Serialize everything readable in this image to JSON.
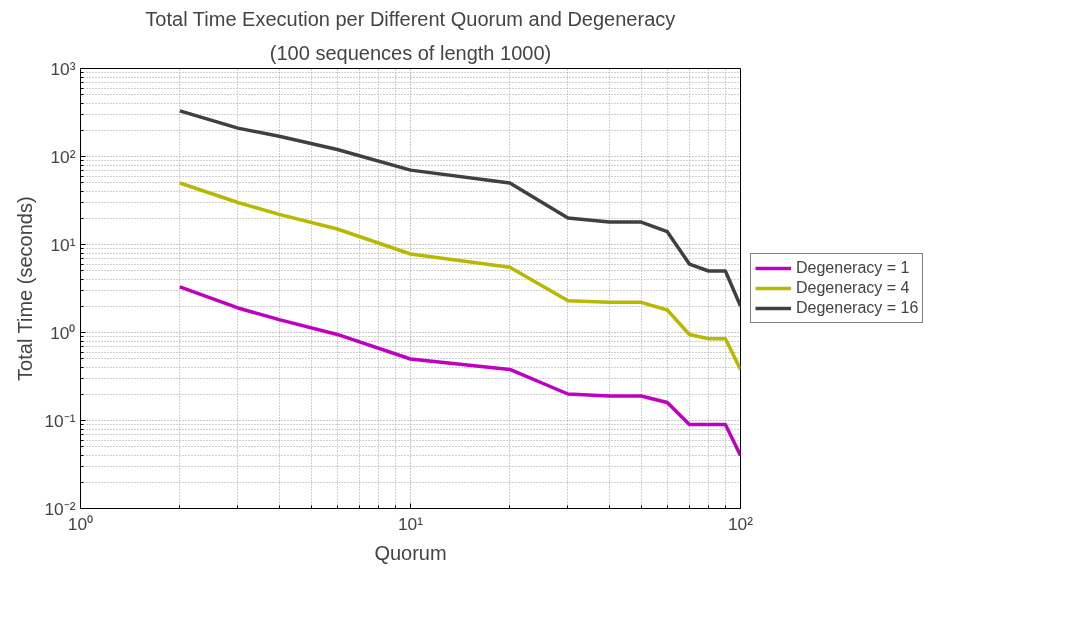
{
  "chart_data": {
    "type": "line",
    "title": "Total Time Execution per Different Quorum and Degeneracy",
    "subtitle": "(100 sequences of length 1000)",
    "xlabel": "Quorum",
    "ylabel": "Total Time (seconds)",
    "x": [
      2,
      3,
      4,
      6,
      10,
      20,
      30,
      40,
      50,
      60,
      70,
      80,
      90,
      100
    ],
    "series": [
      {
        "name": "Degeneracy = 1",
        "color": "#c000c0",
        "values": [
          3.3,
          1.9,
          1.4,
          0.95,
          0.5,
          0.38,
          0.2,
          0.19,
          0.19,
          0.16,
          0.09,
          0.09,
          0.09,
          0.04
        ]
      },
      {
        "name": "Degeneracy = 4",
        "color": "#b8b800",
        "values": [
          50,
          30,
          22,
          15,
          7.8,
          5.5,
          2.3,
          2.2,
          2.2,
          1.8,
          0.95,
          0.85,
          0.85,
          0.38
        ]
      },
      {
        "name": "Degeneracy = 16",
        "color": "#404040",
        "values": [
          330,
          210,
          170,
          120,
          70,
          50,
          20,
          18,
          18,
          14,
          6,
          5,
          5,
          2
        ]
      }
    ],
    "log": "xy",
    "xlim": [
      1,
      100
    ],
    "ylim": [
      0.01,
      1000
    ],
    "xticks": [
      {
        "value": 1,
        "label": "10⁰"
      },
      {
        "value": 10,
        "label": "10¹"
      },
      {
        "value": 100,
        "label": "10²"
      }
    ],
    "yticks": [
      {
        "value": 0.01,
        "label": "10⁻²"
      },
      {
        "value": 0.1,
        "label": "10⁻¹"
      },
      {
        "value": 1,
        "label": "10⁰"
      },
      {
        "value": 10,
        "label": "10¹"
      },
      {
        "value": 100,
        "label": "10²"
      },
      {
        "value": 1000,
        "label": "10³"
      }
    ],
    "grid": true,
    "legend": "right",
    "line_style": "solid"
  }
}
